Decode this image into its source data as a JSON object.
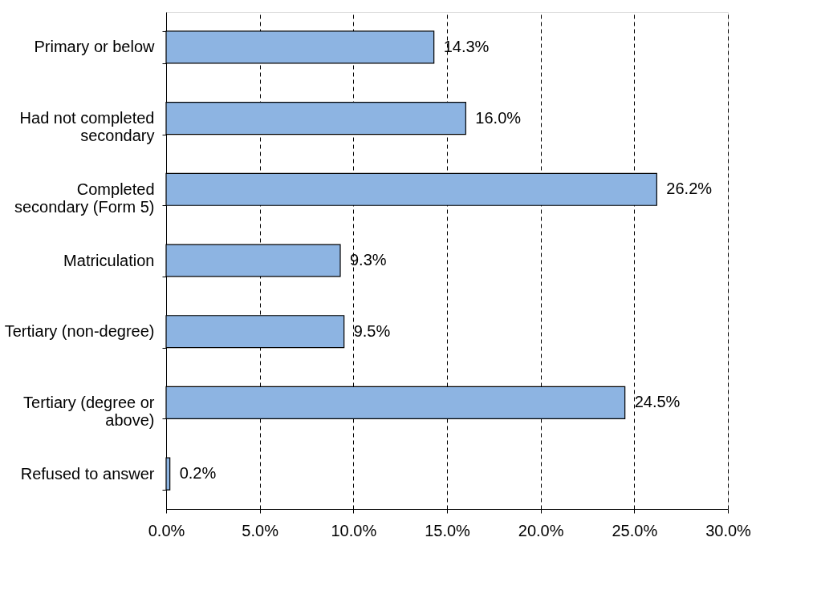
{
  "chart_data": {
    "type": "bar",
    "orientation": "horizontal",
    "categories": [
      "Primary or below",
      "Had not completed\nsecondary",
      "Completed\nsecondary (Form 5)",
      "Matriculation",
      "Tertiary (non-degree)",
      "Tertiary (degree or\nabove)",
      "Refused to answer"
    ],
    "values": [
      14.3,
      16.0,
      26.2,
      9.3,
      9.5,
      24.5,
      0.2
    ],
    "value_labels": [
      "14.3%",
      "16.0%",
      "26.2%",
      "9.3%",
      "9.5%",
      "24.5%",
      "0.2%"
    ],
    "color": "#8db4e2",
    "xlim": [
      0,
      30
    ],
    "xticks": [
      {
        "value": 0,
        "label": "0.0%"
      },
      {
        "value": 5,
        "label": "5.0%"
      },
      {
        "value": 10,
        "label": "10.0%"
      },
      {
        "value": 15,
        "label": "15.0%"
      },
      {
        "value": 20,
        "label": "20.0%"
      },
      {
        "value": 25,
        "label": "25.0%"
      },
      {
        "value": 30,
        "label": "30.0%"
      }
    ],
    "grid": "x"
  }
}
